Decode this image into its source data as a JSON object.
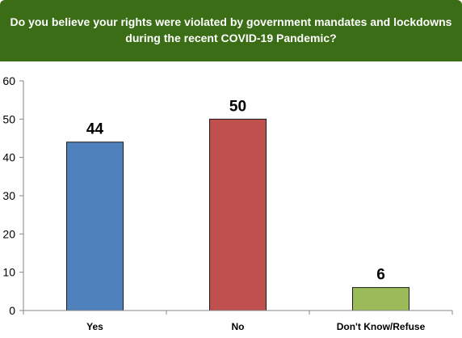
{
  "title": {
    "line1": "Do you believe your rights were violated by government mandates and lockdowns",
    "line2": "during the recent COVID-19 Pandemic?",
    "background": "#3b6d17"
  },
  "chart_data": {
    "type": "bar",
    "title": "Do you believe your rights were violated by government mandates and lockdowns during the recent COVID-19 Pandemic?",
    "categories": [
      "Yes",
      "No",
      "Don't Know/Refuse"
    ],
    "values": [
      44,
      50,
      6
    ],
    "data_labels": [
      "44",
      "50",
      "6"
    ],
    "colors": [
      "#4f81bd",
      "#c0504d",
      "#9bbb59"
    ],
    "xlabel": "",
    "ylabel": "",
    "ylim": [
      0,
      60
    ],
    "yticks": [
      "0",
      "10",
      "20",
      "30",
      "40",
      "50",
      "60"
    ],
    "grid": false,
    "legend": "none"
  }
}
